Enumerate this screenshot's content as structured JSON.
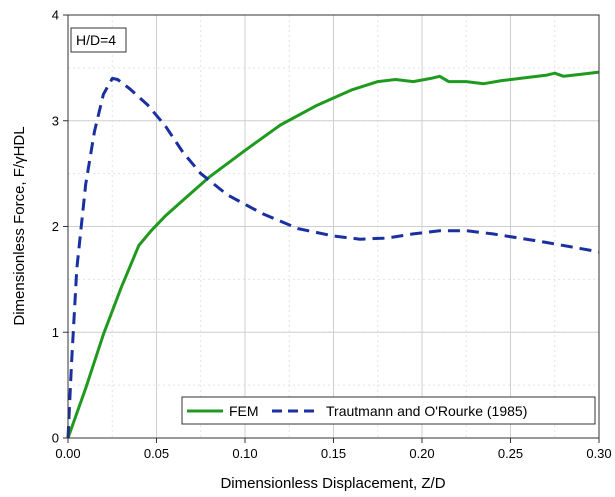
{
  "chart_data": {
    "type": "line",
    "title": "",
    "annotation": "H/D=4",
    "xlabel": "Dimensionless Displacement, Z/D",
    "ylabel": "Dimensionless Force, F/γHDL",
    "xlim": [
      0.0,
      0.3
    ],
    "ylim": [
      0,
      4
    ],
    "x_ticks": [
      0.0,
      0.05,
      0.1,
      0.15,
      0.2,
      0.25,
      0.3
    ],
    "x_tick_labels": [
      "0.00",
      "0.05",
      "0.10",
      "0.15",
      "0.20",
      "0.25",
      "0.30"
    ],
    "y_ticks": [
      0,
      1,
      2,
      3,
      4
    ],
    "y_tick_labels": [
      "0",
      "1",
      "2",
      "3",
      "4"
    ],
    "grid": true,
    "legend_position": "bottom-right",
    "series": [
      {
        "name": "FEM",
        "color": "#1f9a1f",
        "style": "solid",
        "x": [
          0.0,
          0.01,
          0.02,
          0.03,
          0.04,
          0.047,
          0.055,
          0.065,
          0.08,
          0.1,
          0.12,
          0.14,
          0.16,
          0.175,
          0.185,
          0.195,
          0.205,
          0.21,
          0.215,
          0.225,
          0.235,
          0.245,
          0.26,
          0.27,
          0.275,
          0.28,
          0.29,
          0.3
        ],
        "y": [
          0.0,
          0.47,
          0.98,
          1.42,
          1.82,
          1.96,
          2.1,
          2.25,
          2.47,
          2.72,
          2.96,
          3.14,
          3.29,
          3.37,
          3.39,
          3.37,
          3.4,
          3.42,
          3.37,
          3.37,
          3.35,
          3.38,
          3.41,
          3.43,
          3.45,
          3.42,
          3.44,
          3.46
        ]
      },
      {
        "name": "Trautmann and O'Rourke (1985)",
        "color": "#1a2fa0",
        "style": "dashed",
        "x": [
          0.0,
          0.002,
          0.005,
          0.01,
          0.015,
          0.02,
          0.025,
          0.028,
          0.035,
          0.045,
          0.055,
          0.065,
          0.075,
          0.09,
          0.11,
          0.13,
          0.15,
          0.165,
          0.18,
          0.195,
          0.21,
          0.225,
          0.24,
          0.255,
          0.27,
          0.29,
          0.3
        ],
        "y": [
          0.0,
          0.7,
          1.6,
          2.4,
          2.9,
          3.25,
          3.4,
          3.39,
          3.3,
          3.15,
          2.95,
          2.7,
          2.5,
          2.3,
          2.12,
          1.98,
          1.91,
          1.88,
          1.89,
          1.93,
          1.96,
          1.96,
          1.93,
          1.89,
          1.85,
          1.79,
          1.76
        ]
      }
    ]
  }
}
